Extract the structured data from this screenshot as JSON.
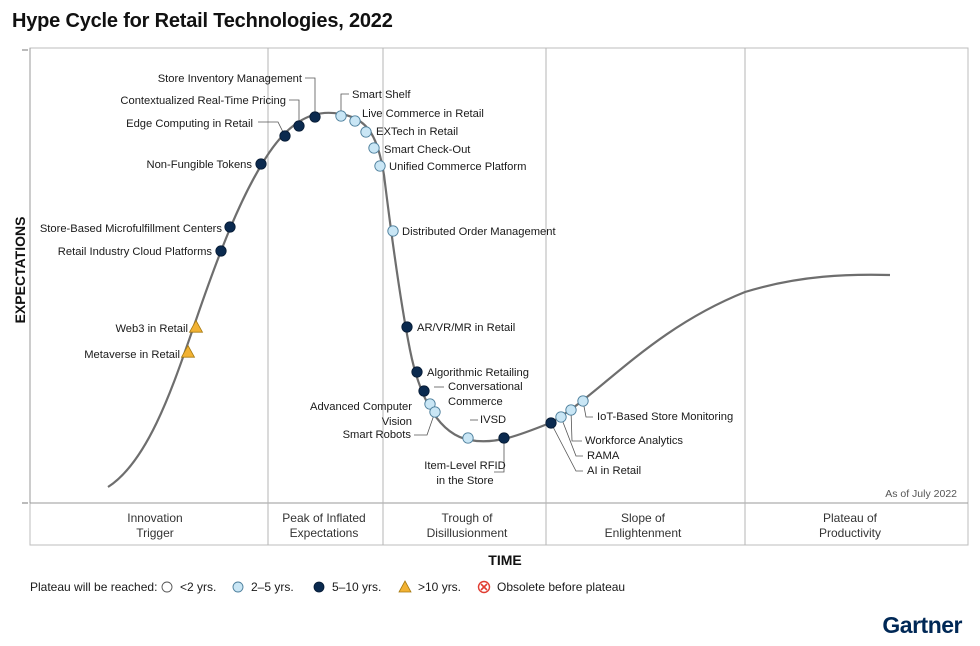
{
  "title": "Hype Cycle for Retail Technologies, 2022",
  "brand": "Gartner",
  "colors": {
    "dark_dot": "#0b2a4f",
    "light_dot": "#c9e6f5",
    "triangle": "#f2b233",
    "curve": "#6e6e6e",
    "obsolete": "#e03c31"
  },
  "chart_data": {
    "type": "hype-cycle",
    "title": "Hype Cycle for Retail Technologies, 2022",
    "xlabel": "TIME",
    "ylabel": "EXPECTATIONS",
    "note": "As of July 2022",
    "phases": [
      {
        "label": [
          "Innovation",
          "Trigger"
        ]
      },
      {
        "label": [
          "Peak of Inflated",
          "Expectations"
        ]
      },
      {
        "label": [
          "Trough of",
          "Disillusionment"
        ]
      },
      {
        "label": [
          "Slope of",
          "Enlightenment"
        ]
      },
      {
        "label": [
          "Plateau of",
          "Productivity"
        ]
      }
    ],
    "legend_title": "Plateau will be reached:",
    "legend": [
      {
        "symbol": "empty-circle",
        "label": "<2 yrs."
      },
      {
        "symbol": "light-circle",
        "label": "2–5 yrs."
      },
      {
        "symbol": "dark-circle",
        "label": "5–10 yrs."
      },
      {
        "symbol": "triangle",
        "label": ">10 yrs."
      },
      {
        "symbol": "obsolete",
        "label": "Obsolete before plateau"
      }
    ],
    "technologies": [
      {
        "name": "Metaverse in Retail",
        "phase": "Innovation Trigger",
        "plateau": ">10 yrs."
      },
      {
        "name": "Web3 in Retail",
        "phase": "Innovation Trigger",
        "plateau": ">10 yrs."
      },
      {
        "name": "Retail Industry Cloud Platforms",
        "phase": "Innovation Trigger",
        "plateau": "5–10 yrs."
      },
      {
        "name": "Store-Based Microfulfillment Centers",
        "phase": "Innovation Trigger",
        "plateau": "5–10 yrs."
      },
      {
        "name": "Non-Fungible Tokens",
        "phase": "Innovation Trigger",
        "plateau": "5–10 yrs."
      },
      {
        "name": "Edge Computing in Retail",
        "phase": "Peak of Inflated Expectations",
        "plateau": "5–10 yrs."
      },
      {
        "name": "Contextualized Real-Time Pricing",
        "phase": "Peak of Inflated Expectations",
        "plateau": "5–10 yrs."
      },
      {
        "name": "Store Inventory Management",
        "phase": "Peak of Inflated Expectations",
        "plateau": "5–10 yrs."
      },
      {
        "name": "Smart Shelf",
        "phase": "Peak of Inflated Expectations",
        "plateau": "2–5 yrs."
      },
      {
        "name": "Live Commerce in Retail",
        "phase": "Peak of Inflated Expectations",
        "plateau": "2–5 yrs."
      },
      {
        "name": "EXTech in Retail",
        "phase": "Peak of Inflated Expectations",
        "plateau": "2–5 yrs."
      },
      {
        "name": "Smart Check-Out",
        "phase": "Peak of Inflated Expectations",
        "plateau": "2–5 yrs."
      },
      {
        "name": "Unified Commerce Platform",
        "phase": "Trough of Disillusionment",
        "plateau": "2–5 yrs."
      },
      {
        "name": "Distributed Order Management",
        "phase": "Trough of Disillusionment",
        "plateau": "2–5 yrs."
      },
      {
        "name": "AR/VR/MR in Retail",
        "phase": "Trough of Disillusionment",
        "plateau": "5–10 yrs."
      },
      {
        "name": "Algorithmic Retailing",
        "phase": "Trough of Disillusionment",
        "plateau": "5–10 yrs."
      },
      {
        "name": "Conversational Commerce",
        "phase": "Trough of Disillusionment",
        "plateau": "5–10 yrs."
      },
      {
        "name": "Advanced Computer Vision",
        "phase": "Trough of Disillusionment",
        "plateau": "2–5 yrs."
      },
      {
        "name": "Smart Robots",
        "phase": "Trough of Disillusionment",
        "plateau": "2–5 yrs."
      },
      {
        "name": "IVSD",
        "phase": "Trough of Disillusionment",
        "plateau": "2–5 yrs."
      },
      {
        "name": "Item-Level RFID in the Store",
        "phase": "Trough of Disillusionment",
        "plateau": "5–10 yrs."
      },
      {
        "name": "AI in Retail",
        "phase": "Slope of Enlightenment",
        "plateau": "5–10 yrs."
      },
      {
        "name": "RAMA",
        "phase": "Slope of Enlightenment",
        "plateau": "2–5 yrs."
      },
      {
        "name": "Workforce Analytics",
        "phase": "Slope of Enlightenment",
        "plateau": "2–5 yrs."
      },
      {
        "name": "IoT-Based Store Monitoring",
        "phase": "Slope of Enlightenment",
        "plateau": "2–5 yrs."
      }
    ]
  }
}
